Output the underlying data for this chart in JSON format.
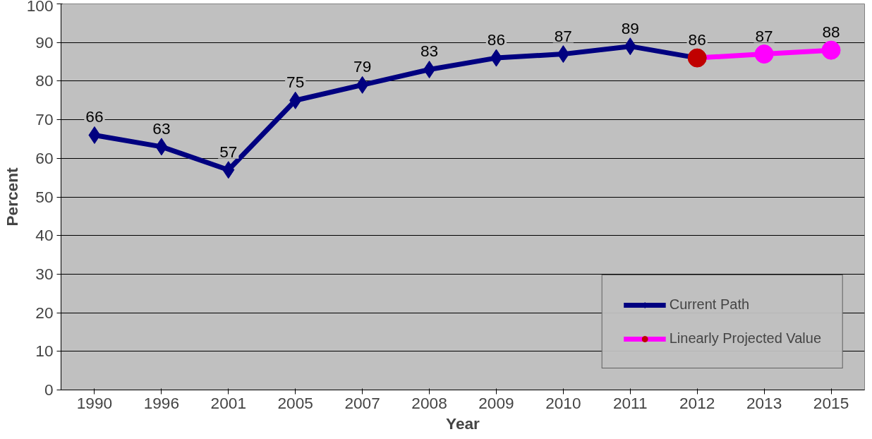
{
  "chart_data": {
    "type": "line",
    "xlabel": "Year",
    "ylabel": "Percent",
    "categories": [
      "1990",
      "1996",
      "2001",
      "2005",
      "2007",
      "2008",
      "2009",
      "2010",
      "2011",
      "2012",
      "2013",
      "2015"
    ],
    "ylim": [
      0,
      100
    ],
    "yticks": [
      0,
      10,
      20,
      30,
      40,
      50,
      60,
      70,
      80,
      90,
      100
    ],
    "grid": "y",
    "legend": "bottom right",
    "series": [
      {
        "name": "Current Path",
        "color": "#000080",
        "marker": "diamond",
        "values": [
          66,
          63,
          57,
          75,
          79,
          83,
          86,
          87,
          89,
          86,
          null,
          null
        ],
        "value_labels": [
          "66",
          "63",
          "57",
          "75",
          "79",
          "83",
          "86",
          "87",
          "89",
          "86",
          null,
          null
        ]
      },
      {
        "name": "Linearly Projected Value",
        "color": "#ff00ff",
        "marker": "circle",
        "colors": [
          null,
          null,
          null,
          null,
          null,
          null,
          null,
          null,
          null,
          "#c00000",
          "#ff00ff",
          "#ff00ff"
        ],
        "values": [
          null,
          null,
          null,
          null,
          null,
          null,
          null,
          null,
          null,
          86,
          87,
          88
        ],
        "value_labels": [
          null,
          null,
          null,
          null,
          null,
          null,
          null,
          null,
          null,
          null,
          "87",
          "88"
        ]
      }
    ]
  }
}
